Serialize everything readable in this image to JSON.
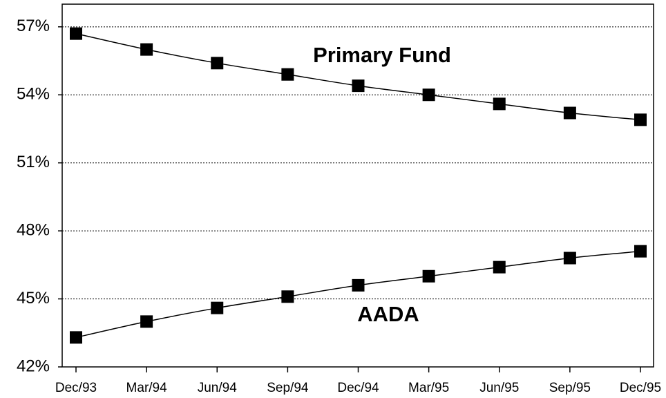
{
  "chart_data": {
    "type": "line",
    "categories": [
      "Dec/93",
      "Mar/94",
      "Jun/94",
      "Sep/94",
      "Dec/94",
      "Mar/95",
      "Jun/95",
      "Sep/95",
      "Dec/95"
    ],
    "series": [
      {
        "name": "Primary Fund",
        "color": "#000000",
        "values": [
          56.7,
          56.0,
          55.4,
          54.9,
          54.4,
          54.0,
          53.6,
          53.2,
          52.9
        ]
      },
      {
        "name": "AADA",
        "color": "#000000",
        "values": [
          43.3,
          44.0,
          44.6,
          45.1,
          45.6,
          46.0,
          46.4,
          46.8,
          47.1
        ]
      }
    ],
    "ylim": [
      42,
      58
    ],
    "yticks": [
      {
        "value": 42,
        "label": "42%"
      },
      {
        "value": 45,
        "label": "45%"
      },
      {
        "value": 48,
        "label": "48%"
      },
      {
        "value": 51,
        "label": "51%"
      },
      {
        "value": 54,
        "label": "54%"
      },
      {
        "value": 57,
        "label": "57%"
      }
    ],
    "grid": true
  }
}
